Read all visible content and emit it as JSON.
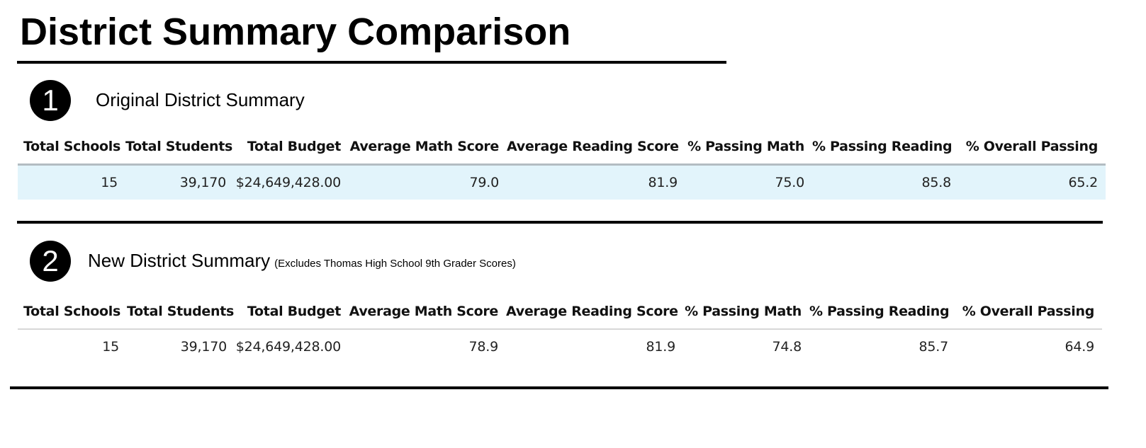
{
  "page": {
    "title": "District Summary Comparison"
  },
  "sections": [
    {
      "number": "1",
      "title": "Original District Summary",
      "note": "",
      "columns": [
        "Total Schools",
        "Total Students",
        "Total Budget",
        "Average Math Score",
        "Average Reading Score",
        "% Passing Math",
        "% Passing Reading",
        "% Overall Passing"
      ],
      "row": [
        "15",
        "39,170",
        "$24,649,428.00",
        "79.0",
        "81.9",
        "75.0",
        "85.8",
        "65.2"
      ]
    },
    {
      "number": "2",
      "title": "New District Summary",
      "note": "(Excludes Thomas High School 9th Grader Scores)",
      "columns": [
        "Total Schools",
        "Total Students",
        "Total Budget",
        "Average Math Score",
        "Average Reading Score",
        "% Passing Math",
        "% Passing Reading",
        "% Overall Passing"
      ],
      "row": [
        "15",
        "39,170",
        "$24,649,428.00",
        "78.9",
        "81.9",
        "74.8",
        "85.7",
        "64.9"
      ]
    }
  ],
  "colors": {
    "original_row_background": "#e2f4fb",
    "badge_background": "#000000",
    "rule": "#000000"
  }
}
